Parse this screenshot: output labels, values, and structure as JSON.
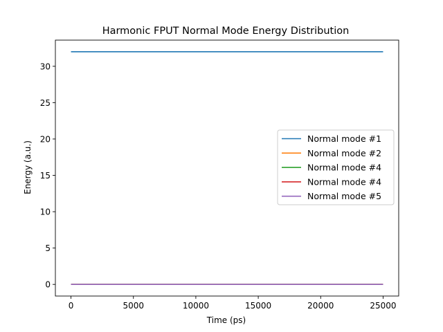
{
  "chart_data": {
    "type": "line",
    "title": "Harmonic FPUT Normal Mode Energy Distribution",
    "xlabel": "Time (ps)",
    "ylabel": "Energy (a.u.)",
    "xlim": [
      -1250,
      26250
    ],
    "ylim": [
      -1.6,
      33.6
    ],
    "x_ticks": [
      0,
      5000,
      10000,
      15000,
      20000,
      25000
    ],
    "y_ticks": [
      0,
      5,
      10,
      15,
      20,
      25,
      30
    ],
    "grid": false,
    "legend_position": "center-right",
    "x": [
      0,
      25000
    ],
    "series": [
      {
        "name": "Normal mode #1",
        "color": "#1f77b4",
        "values": [
          32,
          32
        ]
      },
      {
        "name": "Normal mode #2",
        "color": "#ff7f0e",
        "values": [
          0,
          0
        ]
      },
      {
        "name": "Normal mode #4",
        "color": "#2ca02c",
        "values": [
          0,
          0
        ]
      },
      {
        "name": "Normal mode #4",
        "color": "#d62728",
        "values": [
          0,
          0
        ]
      },
      {
        "name": "Normal mode #5",
        "color": "#9467bd",
        "values": [
          0,
          0
        ]
      }
    ]
  }
}
